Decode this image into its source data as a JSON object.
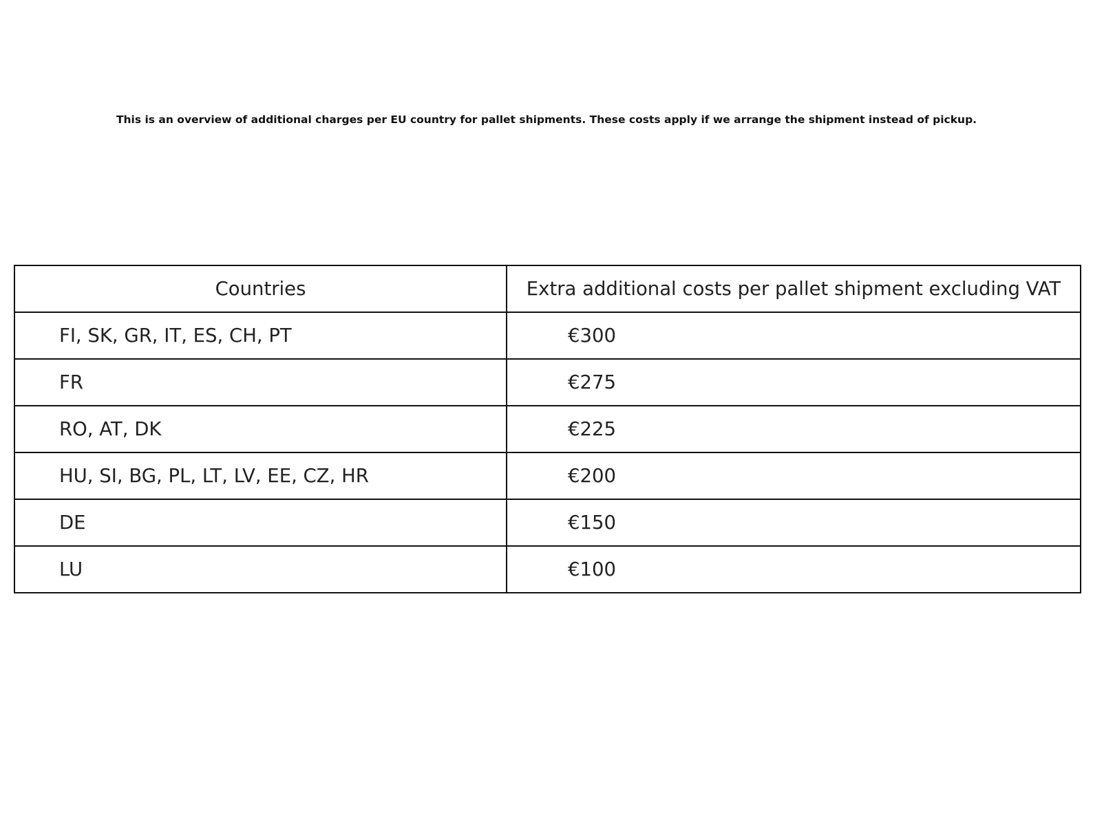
{
  "title": "This is an overview of additional charges per EU country for pallet shipments. These costs apply if we arrange the shipment instead of pickup.",
  "chart_data": {
    "type": "table",
    "columns": [
      "Countries",
      "Extra additional costs per pallet shipment excluding VAT"
    ],
    "rows": [
      [
        "FI, SK, GR, IT, ES, CH, PT",
        "€300"
      ],
      [
        "FR",
        "€275"
      ],
      [
        "RO, AT, DK",
        "€225"
      ],
      [
        "HU, SI, BG, PL, LT, LV, EE, CZ, HR",
        "€200"
      ],
      [
        "DE",
        "€150"
      ],
      [
        "LU",
        "€100"
      ]
    ]
  }
}
